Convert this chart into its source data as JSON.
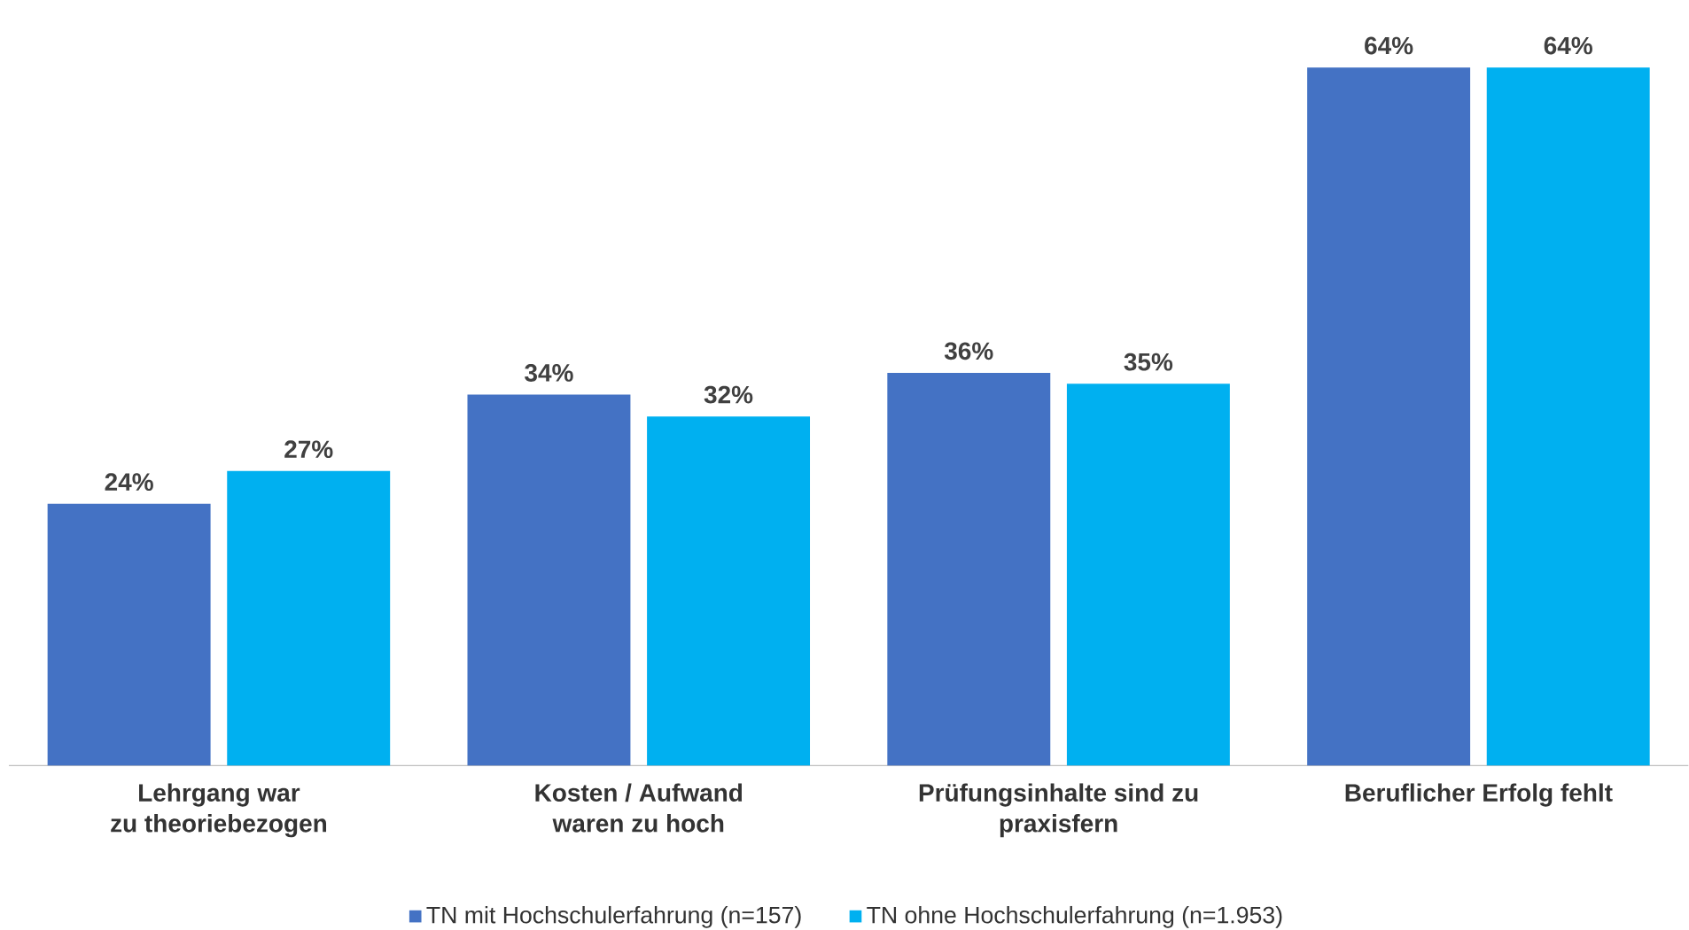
{
  "chart_data": {
    "type": "bar",
    "categories": [
      "Lehrgang war\nzu theoriebezogen",
      "Kosten / Aufwand\nwaren zu hoch",
      "Prüfungsinhalte sind zu\npraxisfern",
      "Beruflicher Erfolg fehlt"
    ],
    "series": [
      {
        "name": "TN mit Hochschulerfahrung (n=157)",
        "color": "#4472c4",
        "values": [
          24,
          34,
          36,
          64
        ],
        "value_labels": [
          "24%",
          "34%",
          "36%",
          "64%"
        ]
      },
      {
        "name": "TN ohne Hochschulerfahrung (n=1.953)",
        "color": "#00b0f0",
        "values": [
          27,
          32,
          35,
          64
        ],
        "value_labels": [
          "27%",
          "32%",
          "35%",
          "64%"
        ]
      }
    ],
    "legend": "bottom"
  }
}
